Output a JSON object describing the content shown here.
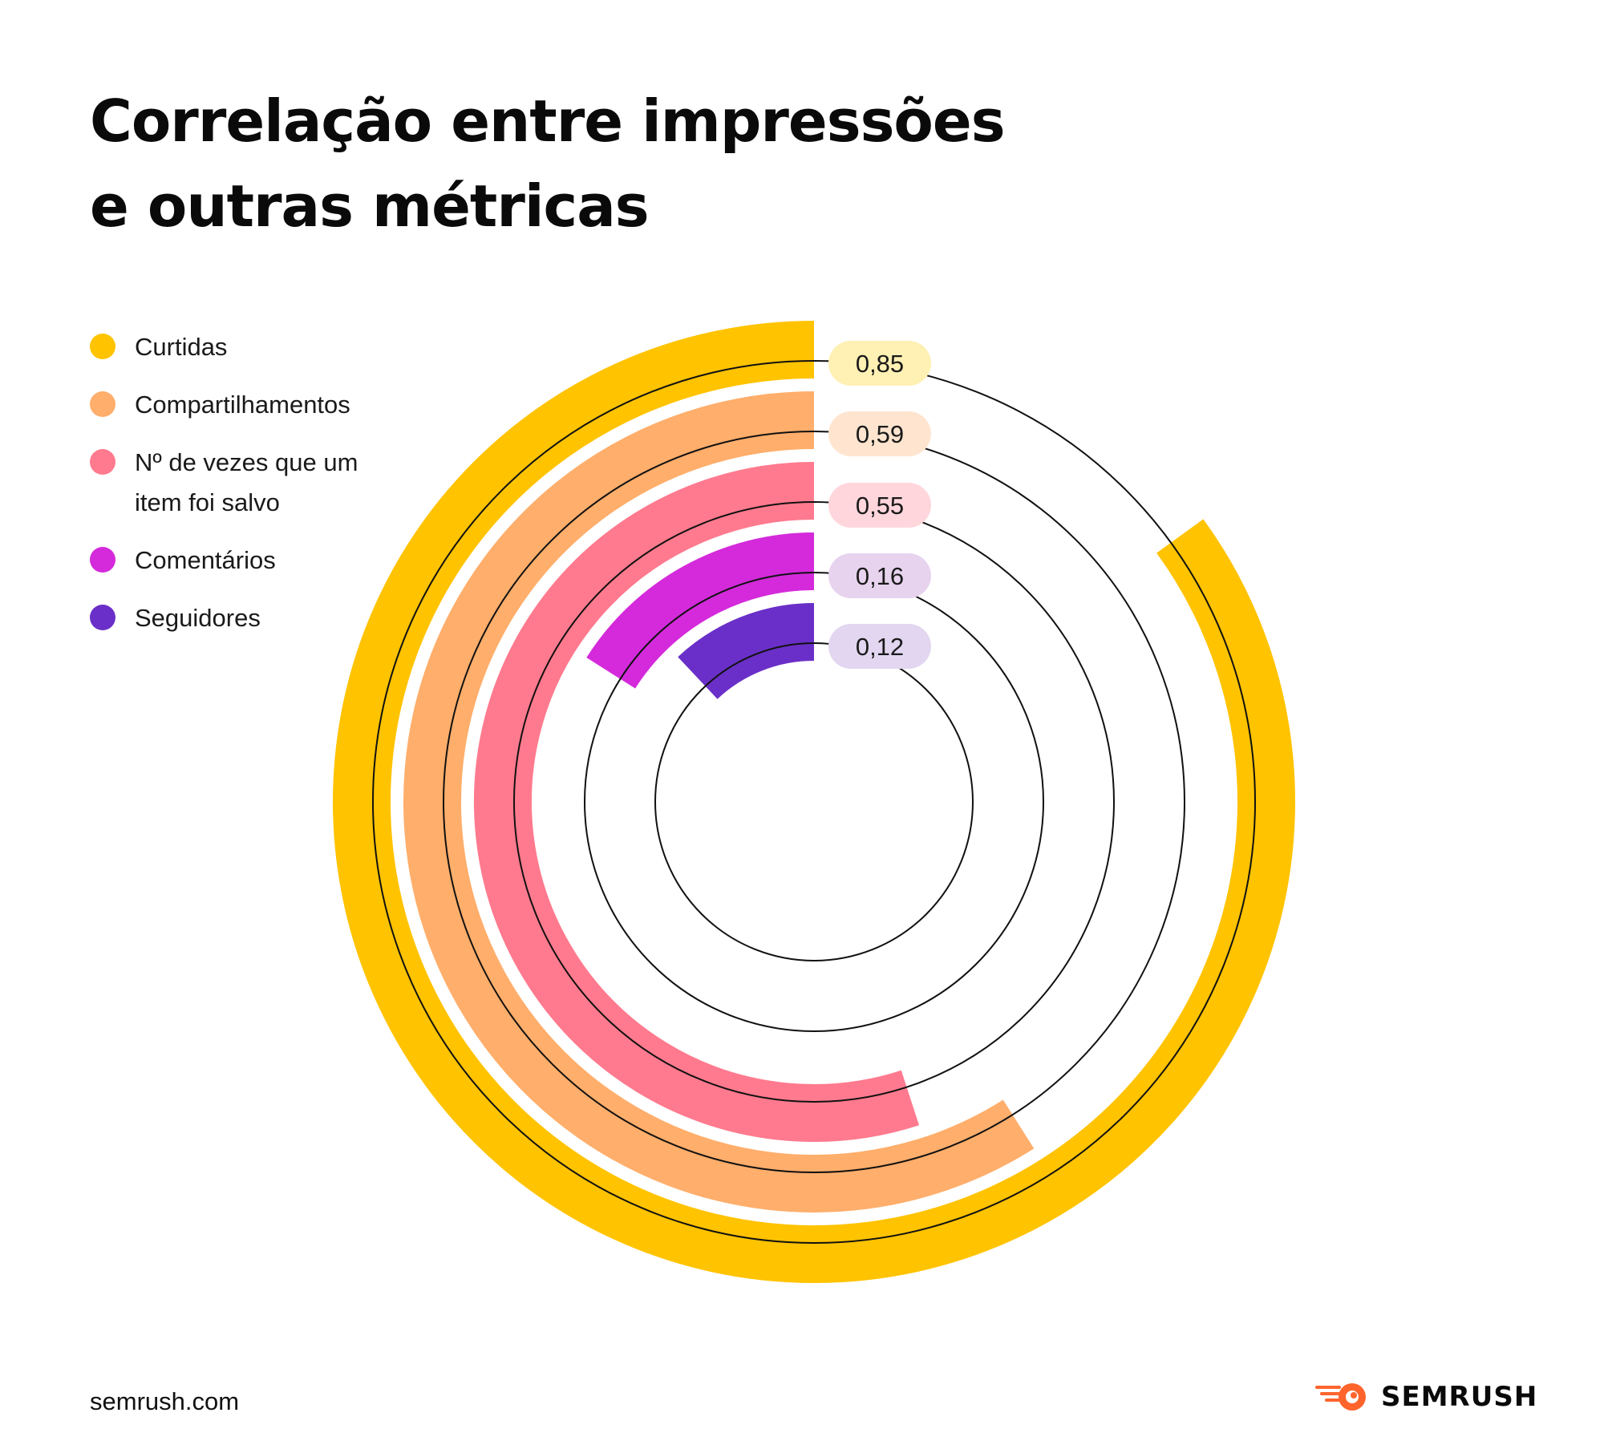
{
  "title": {
    "line1": "Correlação entre impressões",
    "line2": "e outras métricas"
  },
  "legend": [
    {
      "label": "Curtidas",
      "color": "#FFC300"
    },
    {
      "label": "Compartilhamentos",
      "color": "#FFAE6B"
    },
    {
      "label": "Nº de vezes que um item foi salvo",
      "color": "#FF7A8E"
    },
    {
      "label": "Comentários",
      "color": "#D42ADB"
    },
    {
      "label": "Seguidores",
      "color": "#6A2FC8"
    }
  ],
  "chart_data": {
    "type": "radial-bar",
    "title": "Correlação entre impressões e outras métricas",
    "max": 1,
    "series": [
      {
        "name": "Curtidas",
        "value": 0.85,
        "label": "0,85",
        "color": "#FFC300",
        "pill_color": "#FFF0B3"
      },
      {
        "name": "Compartilhamentos",
        "value": 0.59,
        "label": "0,59",
        "color": "#FFAE6B",
        "pill_color": "#FFE5CF"
      },
      {
        "name": "Nº de vezes que um item foi salvo",
        "value": 0.55,
        "label": "0,55",
        "color": "#FF7A8E",
        "pill_color": "#FFD6DC"
      },
      {
        "name": "Comentários",
        "value": 0.16,
        "label": "0,16",
        "color": "#D42ADB",
        "pill_color": "#E8D3EF"
      },
      {
        "name": "Seguidores",
        "value": 0.12,
        "label": "0,12",
        "color": "#6A2FC8",
        "pill_color": "#E2D6F0"
      }
    ]
  },
  "footer": {
    "url": "semrush.com",
    "brand": "SEMRUSH",
    "brand_color": "#FF642D"
  }
}
